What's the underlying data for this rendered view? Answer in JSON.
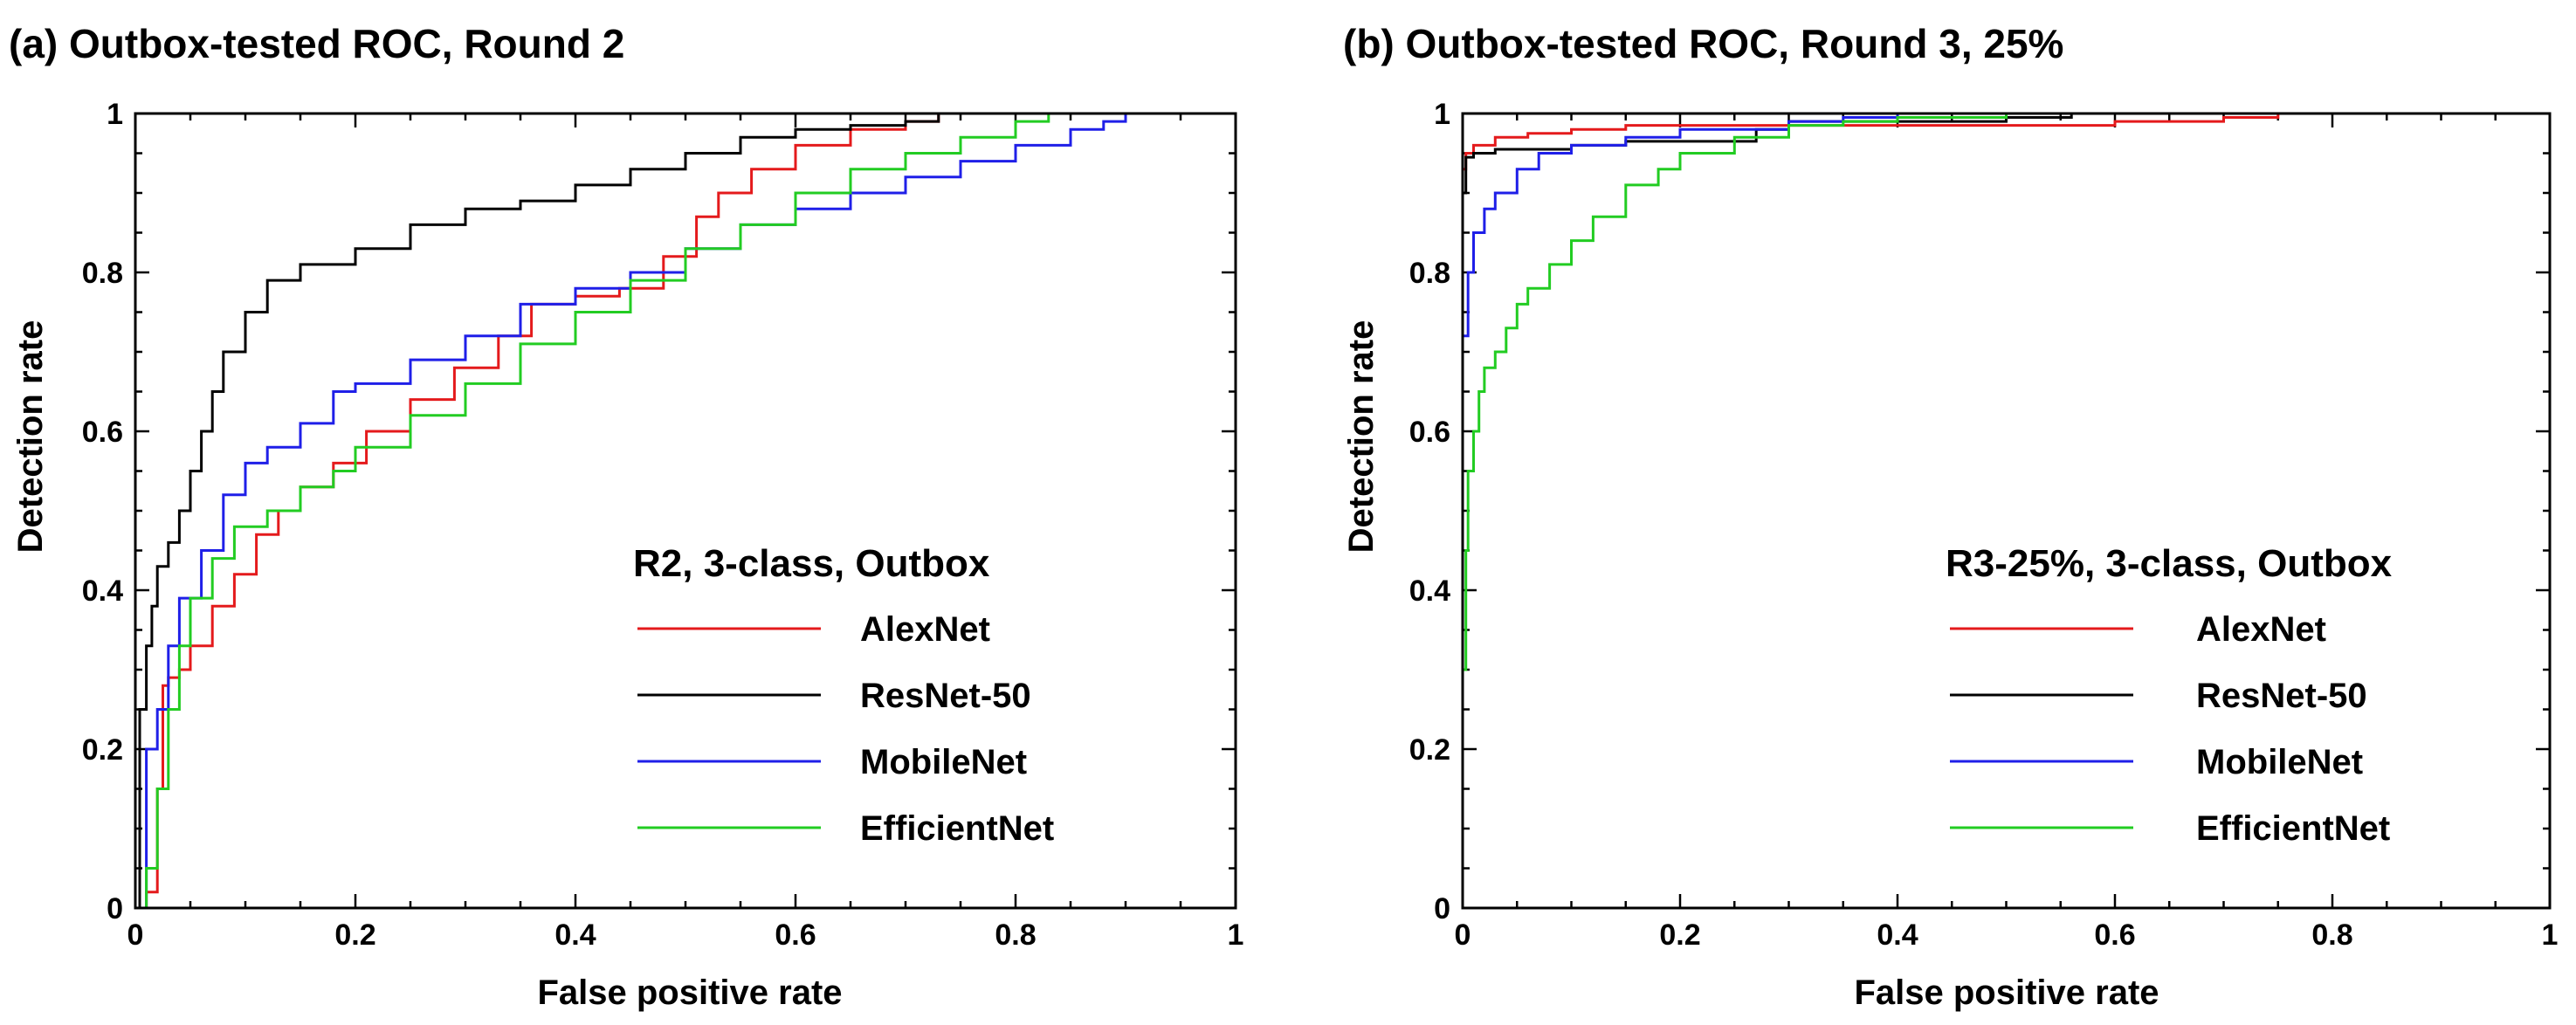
{
  "chart_data": [
    {
      "id": "a",
      "type": "line",
      "title": "(a) Outbox-tested ROC, Round 2",
      "xlabel": "False positive rate",
      "ylabel": "Detection rate",
      "xlim": [
        0,
        1
      ],
      "ylim": [
        0,
        1
      ],
      "x_ticks": [
        0,
        0.2,
        0.4,
        0.6,
        0.8,
        1
      ],
      "x_tick_labels": [
        "0",
        "0.2",
        "0.4",
        "0.6",
        "0.8",
        "1"
      ],
      "y_ticks": [
        0,
        0.2,
        0.4,
        0.6,
        0.8,
        1
      ],
      "y_tick_labels": [
        "0",
        "0.2",
        "0.4",
        "0.6",
        "0.8",
        "1"
      ],
      "grid": false,
      "legend_title": "R2, 3-class, Outbox",
      "legend_position": "lower-right",
      "series": [
        {
          "name": "AlexNet",
          "color": "#e41a1c",
          "x": [
            0,
            0.01,
            0.02,
            0.025,
            0.03,
            0.04,
            0.05,
            0.07,
            0.09,
            0.11,
            0.13,
            0.15,
            0.18,
            0.21,
            0.25,
            0.29,
            0.33,
            0.36,
            0.4,
            0.44,
            0.48,
            0.51,
            0.53,
            0.56,
            0.6,
            0.65,
            0.7,
            0.73,
            0.75,
            0.8,
            0.85,
            0.9
          ],
          "y": [
            0,
            0.02,
            0.15,
            0.28,
            0.29,
            0.3,
            0.33,
            0.38,
            0.42,
            0.47,
            0.5,
            0.53,
            0.56,
            0.6,
            0.64,
            0.68,
            0.72,
            0.76,
            0.77,
            0.78,
            0.82,
            0.87,
            0.9,
            0.93,
            0.96,
            0.98,
            0.99,
            1.0,
            1.0,
            1.0,
            1.0,
            1.0
          ]
        },
        {
          "name": "ResNet-50",
          "color": "#000000",
          "x": [
            0,
            0.004,
            0.01,
            0.015,
            0.02,
            0.03,
            0.04,
            0.05,
            0.06,
            0.07,
            0.08,
            0.1,
            0.12,
            0.15,
            0.2,
            0.25,
            0.3,
            0.35,
            0.4,
            0.45,
            0.5,
            0.55,
            0.6,
            0.65,
            0.7,
            0.73,
            0.75,
            0.8,
            0.9
          ],
          "y": [
            0,
            0.25,
            0.33,
            0.38,
            0.43,
            0.46,
            0.5,
            0.55,
            0.6,
            0.65,
            0.7,
            0.75,
            0.79,
            0.81,
            0.83,
            0.86,
            0.88,
            0.89,
            0.91,
            0.93,
            0.95,
            0.97,
            0.98,
            0.985,
            0.99,
            1.0,
            1.0,
            1.0,
            1.0
          ]
        },
        {
          "name": "MobileNet",
          "color": "#1f1fe8",
          "x": [
            0,
            0.01,
            0.02,
            0.03,
            0.04,
            0.06,
            0.08,
            0.1,
            0.12,
            0.15,
            0.18,
            0.2,
            0.25,
            0.3,
            0.35,
            0.4,
            0.45,
            0.5,
            0.55,
            0.6,
            0.65,
            0.7,
            0.75,
            0.8,
            0.85,
            0.88,
            0.9
          ],
          "y": [
            0,
            0.2,
            0.25,
            0.33,
            0.39,
            0.45,
            0.52,
            0.56,
            0.58,
            0.61,
            0.65,
            0.66,
            0.69,
            0.72,
            0.76,
            0.78,
            0.8,
            0.83,
            0.86,
            0.88,
            0.9,
            0.92,
            0.94,
            0.96,
            0.98,
            0.99,
            1.0
          ]
        },
        {
          "name": "EfficientNet",
          "color": "#22cc22",
          "x": [
            0,
            0.01,
            0.02,
            0.03,
            0.04,
            0.05,
            0.07,
            0.09,
            0.12,
            0.15,
            0.18,
            0.2,
            0.25,
            0.3,
            0.35,
            0.4,
            0.45,
            0.5,
            0.55,
            0.6,
            0.65,
            0.7,
            0.75,
            0.8,
            0.83,
            0.85,
            0.9
          ],
          "y": [
            0,
            0.05,
            0.15,
            0.25,
            0.33,
            0.39,
            0.44,
            0.48,
            0.5,
            0.53,
            0.55,
            0.58,
            0.62,
            0.66,
            0.71,
            0.75,
            0.79,
            0.83,
            0.86,
            0.9,
            0.93,
            0.95,
            0.97,
            0.99,
            1.0,
            1.0,
            1.0
          ]
        }
      ]
    },
    {
      "id": "b",
      "type": "line",
      "title": "(b) Outbox-tested ROC, Round 3, 25%",
      "xlabel": "False positive rate",
      "ylabel": "Detection rate",
      "xlim": [
        0,
        1
      ],
      "ylim": [
        0,
        1
      ],
      "x_ticks": [
        0,
        0.2,
        0.4,
        0.6,
        0.8,
        1
      ],
      "x_tick_labels": [
        "0",
        "0.2",
        "0.4",
        "0.6",
        "0.8",
        "1"
      ],
      "y_ticks": [
        0,
        0.2,
        0.4,
        0.6,
        0.8,
        1
      ],
      "y_tick_labels": [
        "0",
        "0.2",
        "0.4",
        "0.6",
        "0.8",
        "1"
      ],
      "grid": false,
      "legend_title": "R3-25%, 3-class, Outbox",
      "legend_position": "lower-right",
      "series": [
        {
          "name": "AlexNet",
          "color": "#e41a1c",
          "x": [
            0,
            0.003,
            0.01,
            0.03,
            0.06,
            0.1,
            0.15,
            0.2,
            0.3,
            0.4,
            0.5,
            0.6,
            0.7,
            0.75
          ],
          "y": [
            0.93,
            0.95,
            0.96,
            0.97,
            0.975,
            0.98,
            0.985,
            0.985,
            0.985,
            0.985,
            0.985,
            0.99,
            0.995,
            1.0
          ]
        },
        {
          "name": "ResNet-50",
          "color": "#000000",
          "x": [
            0,
            0.003,
            0.01,
            0.03,
            0.06,
            0.1,
            0.15,
            0.2,
            0.25,
            0.27,
            0.3,
            0.4,
            0.5,
            0.56
          ],
          "y": [
            0.9,
            0.945,
            0.95,
            0.955,
            0.955,
            0.96,
            0.965,
            0.965,
            0.965,
            0.98,
            0.99,
            0.99,
            0.995,
            1.0
          ]
        },
        {
          "name": "MobileNet",
          "color": "#1f1fe8",
          "x": [
            0,
            0.005,
            0.01,
            0.02,
            0.03,
            0.05,
            0.07,
            0.1,
            0.15,
            0.2,
            0.25,
            0.3,
            0.35,
            0.4,
            0.45
          ],
          "y": [
            0.72,
            0.8,
            0.85,
            0.88,
            0.9,
            0.93,
            0.95,
            0.96,
            0.97,
            0.98,
            0.98,
            0.99,
            0.995,
            1.0,
            1.0
          ]
        },
        {
          "name": "EfficientNet",
          "color": "#22cc22",
          "x": [
            0,
            0.003,
            0.005,
            0.01,
            0.015,
            0.02,
            0.03,
            0.04,
            0.05,
            0.06,
            0.08,
            0.1,
            0.12,
            0.15,
            0.18,
            0.2,
            0.25,
            0.3,
            0.35,
            0.4,
            0.45,
            0.5,
            0.55
          ],
          "y": [
            0.3,
            0.45,
            0.55,
            0.6,
            0.65,
            0.68,
            0.7,
            0.73,
            0.76,
            0.78,
            0.81,
            0.84,
            0.87,
            0.91,
            0.93,
            0.95,
            0.97,
            0.985,
            0.99,
            0.995,
            0.995,
            1.0,
            1.0
          ]
        }
      ]
    }
  ]
}
